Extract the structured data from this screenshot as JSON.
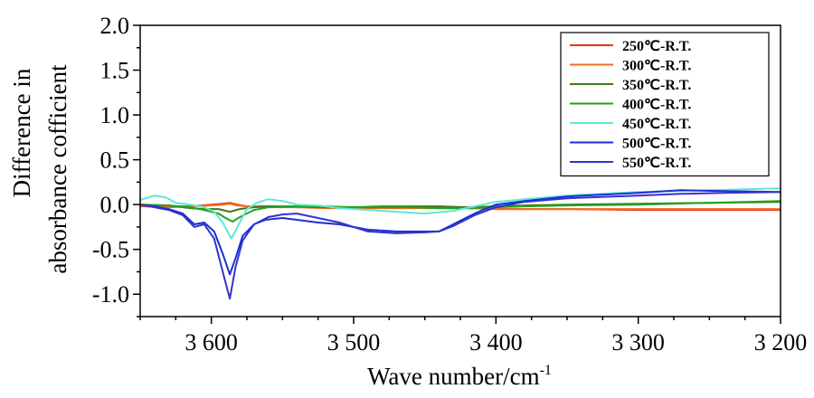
{
  "chart_data": {
    "type": "line",
    "title": "",
    "xlabel": "Wave number/cm",
    "xlabel_superscript": "-1",
    "ylabel_line1": "Difference in",
    "ylabel_line2": "absorbance cofficient",
    "x_reversed": true,
    "xlim": [
      3650,
      3200
    ],
    "ylim": [
      -1.25,
      2.0
    ],
    "x_ticks": [
      3600,
      3500,
      3400,
      3300,
      3200
    ],
    "x_tick_labels": [
      "3 600",
      "3 500",
      "3 400",
      "3 300",
      "3 200"
    ],
    "y_ticks": [
      -1.0,
      -0.5,
      0.0,
      0.5,
      1.0,
      1.5,
      2.0
    ],
    "y_tick_labels": [
      "-1.0",
      "-0.5",
      "0.0",
      "0.5",
      "1.0",
      "1.5",
      "2.0"
    ],
    "grid": false,
    "legend_position": "top-right",
    "series": [
      {
        "name": "250℃-R.T.",
        "color": "#e8341c",
        "x": [
          3650,
          3630,
          3615,
          3600,
          3592,
          3587,
          3582,
          3575,
          3560,
          3540,
          3520,
          3500,
          3480,
          3460,
          3440,
          3420,
          3400,
          3380,
          3350,
          3300,
          3250,
          3200
        ],
        "y": [
          -0.01,
          -0.02,
          -0.02,
          0.0,
          0.01,
          0.02,
          0.0,
          -0.02,
          -0.02,
          -0.03,
          -0.03,
          -0.03,
          -0.03,
          -0.03,
          -0.04,
          -0.04,
          -0.05,
          -0.05,
          -0.05,
          -0.06,
          -0.06,
          -0.06
        ]
      },
      {
        "name": "300℃-R.T.",
        "color": "#f26a1b",
        "x": [
          3650,
          3630,
          3615,
          3600,
          3592,
          3587,
          3582,
          3575,
          3560,
          3540,
          3520,
          3500,
          3480,
          3460,
          3440,
          3420,
          3400,
          3380,
          3350,
          3300,
          3250,
          3200
        ],
        "y": [
          -0.02,
          -0.03,
          -0.02,
          -0.01,
          0.0,
          0.01,
          -0.01,
          -0.02,
          -0.03,
          -0.03,
          -0.04,
          -0.04,
          -0.04,
          -0.04,
          -0.04,
          -0.04,
          -0.05,
          -0.05,
          -0.05,
          -0.05,
          -0.05,
          -0.05
        ]
      },
      {
        "name": "350℃-R.T.",
        "color": "#3e7a1a",
        "x": [
          3650,
          3630,
          3615,
          3605,
          3595,
          3587,
          3580,
          3570,
          3560,
          3540,
          3520,
          3500,
          3480,
          3460,
          3440,
          3420,
          3400,
          3380,
          3350,
          3300,
          3250,
          3200
        ],
        "y": [
          0.0,
          -0.01,
          -0.04,
          -0.05,
          -0.05,
          -0.08,
          -0.05,
          -0.03,
          -0.02,
          -0.02,
          -0.03,
          -0.03,
          -0.02,
          -0.02,
          -0.02,
          -0.03,
          -0.02,
          -0.01,
          0.0,
          0.01,
          0.02,
          0.03
        ]
      },
      {
        "name": "400℃-R.T.",
        "color": "#1fa31f",
        "x": [
          3650,
          3630,
          3615,
          3605,
          3595,
          3590,
          3585,
          3580,
          3570,
          3560,
          3540,
          3520,
          3500,
          3480,
          3460,
          3440,
          3420,
          3400,
          3380,
          3350,
          3300,
          3250,
          3200
        ],
        "y": [
          0.0,
          -0.01,
          -0.03,
          -0.06,
          -0.1,
          -0.15,
          -0.19,
          -0.14,
          -0.06,
          -0.03,
          -0.02,
          -0.02,
          -0.03,
          -0.03,
          -0.03,
          -0.04,
          -0.04,
          -0.03,
          -0.02,
          -0.01,
          0.0,
          0.02,
          0.04
        ]
      },
      {
        "name": "450℃-R.T.",
        "color": "#5ee8d6",
        "x": [
          3650,
          3640,
          3632,
          3625,
          3615,
          3605,
          3598,
          3592,
          3586,
          3580,
          3575,
          3568,
          3560,
          3550,
          3540,
          3525,
          3510,
          3490,
          3470,
          3450,
          3430,
          3415,
          3400,
          3380,
          3350,
          3300,
          3250,
          3200
        ],
        "y": [
          0.05,
          0.1,
          0.08,
          0.02,
          0.0,
          -0.03,
          -0.08,
          -0.2,
          -0.38,
          -0.2,
          -0.05,
          0.02,
          0.06,
          0.04,
          0.0,
          -0.01,
          -0.04,
          -0.06,
          -0.08,
          -0.1,
          -0.07,
          -0.02,
          0.03,
          0.06,
          0.1,
          0.14,
          0.16,
          0.18
        ]
      },
      {
        "name": "500℃-R.T.",
        "color": "#1a2fd6",
        "x": [
          3650,
          3640,
          3630,
          3620,
          3612,
          3605,
          3598,
          3592,
          3587,
          3583,
          3578,
          3570,
          3562,
          3550,
          3540,
          3525,
          3510,
          3490,
          3470,
          3450,
          3440,
          3430,
          3415,
          3400,
          3380,
          3350,
          3300,
          3270,
          3240,
          3200
        ],
        "y": [
          0.0,
          -0.02,
          -0.05,
          -0.1,
          -0.22,
          -0.2,
          -0.3,
          -0.55,
          -0.78,
          -0.6,
          -0.35,
          -0.22,
          -0.17,
          -0.15,
          -0.17,
          -0.2,
          -0.22,
          -0.28,
          -0.3,
          -0.3,
          -0.3,
          -0.22,
          -0.1,
          0.0,
          0.04,
          0.09,
          0.13,
          0.16,
          0.15,
          0.14
        ]
      },
      {
        "name": "550℃-R.T.",
        "color": "#3333cc",
        "x": [
          3650,
          3640,
          3630,
          3620,
          3612,
          3605,
          3598,
          3592,
          3587,
          3583,
          3578,
          3570,
          3560,
          3550,
          3540,
          3525,
          3510,
          3490,
          3470,
          3450,
          3440,
          3430,
          3415,
          3400,
          3380,
          3350,
          3300,
          3270,
          3240,
          3200
        ],
        "y": [
          0.0,
          -0.03,
          -0.06,
          -0.12,
          -0.25,
          -0.22,
          -0.38,
          -0.75,
          -1.05,
          -0.7,
          -0.4,
          -0.22,
          -0.14,
          -0.11,
          -0.1,
          -0.15,
          -0.2,
          -0.3,
          -0.32,
          -0.31,
          -0.3,
          -0.24,
          -0.12,
          -0.03,
          0.03,
          0.07,
          0.1,
          0.12,
          0.13,
          0.14
        ]
      }
    ]
  }
}
